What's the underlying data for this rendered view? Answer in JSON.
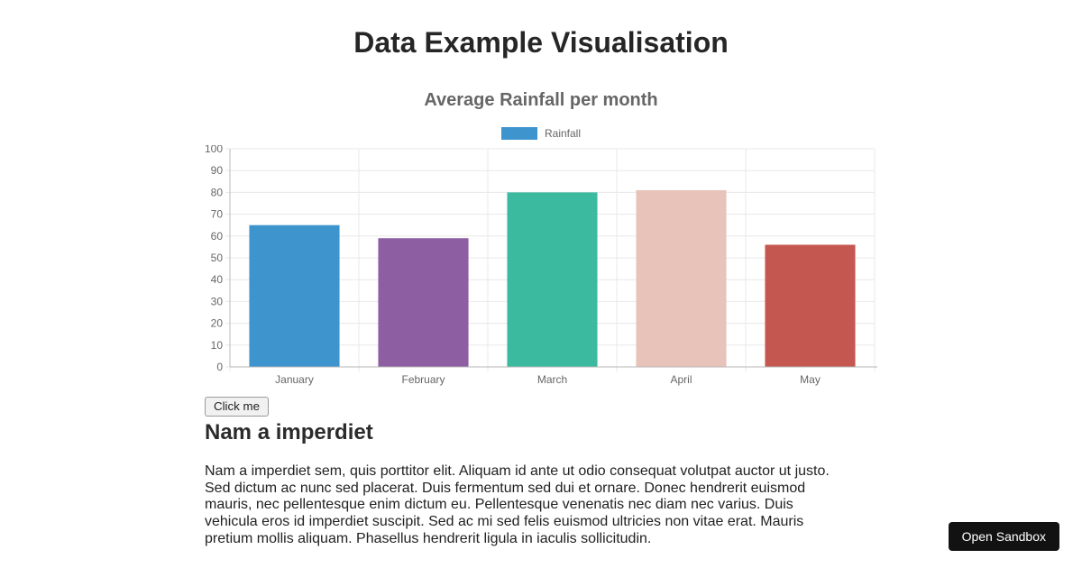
{
  "page": {
    "title": "Data Example Visualisation"
  },
  "chart_data": {
    "type": "bar",
    "title": "Average Rainfall per month",
    "categories": [
      "January",
      "February",
      "March",
      "April",
      "May"
    ],
    "series": [
      {
        "name": "Rainfall",
        "values": [
          65,
          59,
          80,
          81,
          56
        ],
        "colors": [
          "#3e95cd",
          "#8e5ea2",
          "#3cba9f",
          "#e8c3b9",
          "#c45850"
        ]
      }
    ],
    "xlabel": "",
    "ylabel": "",
    "ylim": [
      0,
      100
    ],
    "ytick_step": 10,
    "grid": true,
    "legend_position": "top",
    "legend": [
      {
        "label": "Rainfall",
        "color": "#3e95cd"
      }
    ],
    "grid_color": "#e8e8e8",
    "axis_color": "#b8b8b8",
    "tick_label_color": "#666666"
  },
  "controls": {
    "click_me_label": "Click me"
  },
  "article": {
    "heading": "Nam a imperdiet",
    "body": "Nam a imperdiet sem, quis porttitor elit. Aliquam id ante ut odio consequat volutpat auctor ut justo. Sed dictum ac nunc sed placerat. Duis fermentum sed dui et ornare. Donec hendrerit euismod mauris, nec pellentesque enim dictum eu. Pellentesque venenatis nec diam nec varius. Duis vehicula eros id imperdiet suscipit. Sed ac mi sed felis euismod ultricies non vitae erat. Mauris pretium mollis aliquam. Phasellus hendrerit ligula in iaculis sollicitudin."
  },
  "sandbox": {
    "open_button_label": "Open Sandbox"
  }
}
